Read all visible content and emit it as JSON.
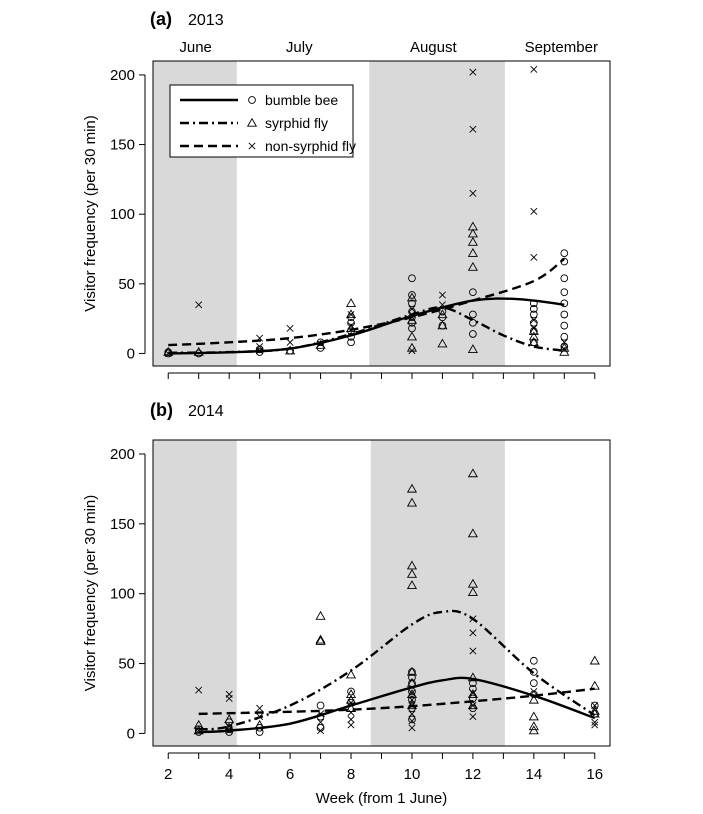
{
  "chart_data": [
    {
      "type": "scatter",
      "panel_label": "(a)",
      "title": "2013",
      "ylabel": "Visitor frequency (per 30 min)",
      "xlabel": "",
      "xlim": [
        1.5,
        16.5
      ],
      "ylim": [
        -9,
        210
      ],
      "yticks": [
        0,
        50,
        100,
        150,
        200
      ],
      "xticks_minor": [
        2,
        3,
        4,
        5,
        6,
        7,
        8,
        9,
        10,
        11,
        12,
        13,
        14,
        15,
        16
      ],
      "months": [
        {
          "label": "June",
          "x": 2.9
        },
        {
          "label": "July",
          "x": 6.3
        },
        {
          "label": "August",
          "x": 10.7
        },
        {
          "label": "September",
          "x": 14.9
        }
      ],
      "shaded_bands": [
        [
          1.5,
          4.25
        ],
        [
          8.6,
          13.05
        ]
      ],
      "legend": [
        {
          "label": "bumble bee",
          "line": "solid",
          "marker": "circle"
        },
        {
          "label": "syrphid fly",
          "line": "dash-dot",
          "marker": "triangle"
        },
        {
          "label": "non-syrphid fly",
          "line": "dashed",
          "marker": "cross"
        }
      ],
      "series": [
        {
          "name": "bumble bee",
          "marker": "circle",
          "line": "solid",
          "points": [
            [
              2,
              0
            ],
            [
              2,
              1
            ],
            [
              3,
              0
            ],
            [
              5,
              1
            ],
            [
              5,
              3
            ],
            [
              6,
              2
            ],
            [
              7,
              4
            ],
            [
              7,
              8
            ],
            [
              8,
              8
            ],
            [
              8,
              12
            ],
            [
              8,
              16
            ],
            [
              8,
              22
            ],
            [
              8,
              26
            ],
            [
              10,
              18
            ],
            [
              10,
              22
            ],
            [
              10,
              26
            ],
            [
              10,
              30
            ],
            [
              10,
              36
            ],
            [
              10,
              42
            ],
            [
              10,
              54
            ],
            [
              11,
              20
            ],
            [
              11,
              26
            ],
            [
              11,
              30
            ],
            [
              12,
              14
            ],
            [
              12,
              22
            ],
            [
              12,
              28
            ],
            [
              12,
              44
            ],
            [
              14,
              8
            ],
            [
              14,
              16
            ],
            [
              14,
              22
            ],
            [
              14,
              28
            ],
            [
              14,
              32
            ],
            [
              14,
              36
            ],
            [
              15,
              5
            ],
            [
              15,
              12
            ],
            [
              15,
              20
            ],
            [
              15,
              28
            ],
            [
              15,
              36
            ],
            [
              15,
              44
            ],
            [
              15,
              54
            ],
            [
              15,
              66
            ],
            [
              15,
              72
            ]
          ],
          "trend": [
            [
              2,
              0
            ],
            [
              4,
              0.8
            ],
            [
              6,
              3.5
            ],
            [
              8,
              13
            ],
            [
              10,
              27
            ],
            [
              12,
              38
            ],
            [
              13.5,
              39
            ],
            [
              15,
              35
            ]
          ]
        },
        {
          "name": "syrphid fly",
          "marker": "triangle",
          "line": "dash-dot",
          "points": [
            [
              2,
              1
            ],
            [
              3,
              1
            ],
            [
              6,
              2
            ],
            [
              7,
              6
            ],
            [
              8,
              18
            ],
            [
              8,
              28
            ],
            [
              8,
              36
            ],
            [
              10,
              4
            ],
            [
              10,
              12
            ],
            [
              10,
              24
            ],
            [
              10,
              40
            ],
            [
              11,
              7
            ],
            [
              11,
              20
            ],
            [
              11,
              28
            ],
            [
              12,
              3
            ],
            [
              12,
              62
            ],
            [
              12,
              72
            ],
            [
              12,
              80
            ],
            [
              12,
              86
            ],
            [
              12,
              91
            ],
            [
              14,
              8
            ],
            [
              14,
              12
            ],
            [
              14,
              16
            ],
            [
              15,
              1
            ],
            [
              15,
              4
            ]
          ],
          "trend": [
            [
              2,
              0.5
            ],
            [
              4,
              1
            ],
            [
              6,
              3.5
            ],
            [
              8,
              14
            ],
            [
              10,
              28
            ],
            [
              11,
              33
            ],
            [
              12,
              24
            ],
            [
              13,
              13
            ],
            [
              14,
              5
            ],
            [
              15,
              2
            ]
          ]
        },
        {
          "name": "non-syrphid fly",
          "marker": "cross",
          "line": "dashed",
          "points": [
            [
              2,
              0
            ],
            [
              3,
              35
            ],
            [
              5,
              2
            ],
            [
              5,
              5
            ],
            [
              5,
              11
            ],
            [
              6,
              8
            ],
            [
              6,
              18
            ],
            [
              7,
              7
            ],
            [
              8,
              20
            ],
            [
              8,
              28
            ],
            [
              10,
              2
            ],
            [
              10,
              28
            ],
            [
              10,
              32
            ],
            [
              11,
              35
            ],
            [
              11,
              42
            ],
            [
              12,
              115
            ],
            [
              12,
              161
            ],
            [
              12,
              202
            ],
            [
              14,
              18
            ],
            [
              14,
              24
            ],
            [
              14,
              69
            ],
            [
              14,
              102
            ],
            [
              14,
              204
            ],
            [
              15,
              3
            ],
            [
              15,
              8
            ]
          ],
          "trend": [
            [
              2,
              6
            ],
            [
              4,
              8
            ],
            [
              6,
              11
            ],
            [
              8,
              17
            ],
            [
              10,
              26
            ],
            [
              12,
              38
            ],
            [
              14,
              52
            ],
            [
              15,
              68
            ]
          ]
        }
      ]
    },
    {
      "type": "scatter",
      "panel_label": "(b)",
      "title": "2014",
      "ylabel": "Visitor frequency (per 30 min)",
      "xlabel": "Week (from 1 June)",
      "xlim": [
        1.5,
        16.5
      ],
      "ylim": [
        -9,
        210
      ],
      "yticks": [
        0,
        50,
        100,
        150,
        200
      ],
      "xticks": [
        2,
        4,
        6,
        8,
        10,
        12,
        14,
        16
      ],
      "xticks_minor": [
        3,
        5,
        7,
        9,
        11,
        13,
        15
      ],
      "shaded_bands": [
        [
          1.5,
          4.25
        ],
        [
          8.65,
          13.05
        ]
      ],
      "series": [
        {
          "name": "bumble bee",
          "marker": "circle",
          "line": "solid",
          "points": [
            [
              3,
              1
            ],
            [
              3,
              3
            ],
            [
              4,
              1
            ],
            [
              4,
              3
            ],
            [
              4,
              8
            ],
            [
              5,
              1
            ],
            [
              5,
              4
            ],
            [
              7,
              4
            ],
            [
              7,
              12
            ],
            [
              7,
              20
            ],
            [
              8,
              22
            ],
            [
              8,
              30
            ],
            [
              10,
              10
            ],
            [
              10,
              18
            ],
            [
              10,
              24
            ],
            [
              10,
              30
            ],
            [
              10,
              36
            ],
            [
              10,
              40
            ],
            [
              10,
              44
            ],
            [
              12,
              18
            ],
            [
              12,
              25
            ],
            [
              12,
              32
            ],
            [
              12,
              36
            ],
            [
              14,
              28
            ],
            [
              14,
              36
            ],
            [
              14,
              44
            ],
            [
              14,
              52
            ],
            [
              16,
              14
            ],
            [
              16,
              20
            ]
          ],
          "trend": [
            [
              3,
              1
            ],
            [
              4,
              2
            ],
            [
              6,
              7
            ],
            [
              8,
              20
            ],
            [
              10,
              33
            ],
            [
              11,
              38
            ],
            [
              12,
              39
            ],
            [
              14,
              27
            ],
            [
              16,
              11
            ]
          ]
        },
        {
          "name": "syrphid fly",
          "marker": "triangle",
          "line": "dash-dot",
          "points": [
            [
              3,
              2
            ],
            [
              3,
              6
            ],
            [
              4,
              4
            ],
            [
              4,
              10
            ],
            [
              5,
              6
            ],
            [
              7,
              66
            ],
            [
              7,
              67
            ],
            [
              7,
              84
            ],
            [
              8,
              18
            ],
            [
              8,
              24
            ],
            [
              8,
              28
            ],
            [
              8,
              42
            ],
            [
              10,
              20
            ],
            [
              10,
              28
            ],
            [
              10,
              36
            ],
            [
              10,
              44
            ],
            [
              10,
              106
            ],
            [
              10,
              114
            ],
            [
              10,
              120
            ],
            [
              10,
              165
            ],
            [
              10,
              175
            ],
            [
              12,
              20
            ],
            [
              12,
              28
            ],
            [
              12,
              40
            ],
            [
              12,
              101
            ],
            [
              12,
              107
            ],
            [
              12,
              143
            ],
            [
              12,
              186
            ],
            [
              14,
              2
            ],
            [
              14,
              5
            ],
            [
              14,
              12
            ],
            [
              14,
              24
            ],
            [
              16,
              14
            ],
            [
              16,
              16
            ],
            [
              16,
              34
            ],
            [
              16,
              52
            ]
          ],
          "trend": [
            [
              3,
              3
            ],
            [
              4,
              5
            ],
            [
              6,
              20
            ],
            [
              8,
              45
            ],
            [
              10,
              78
            ],
            [
              11,
              87
            ],
            [
              12,
              82
            ],
            [
              14,
              43
            ],
            [
              16,
              13
            ]
          ]
        },
        {
          "name": "non-syrphid fly",
          "marker": "cross",
          "line": "dashed",
          "points": [
            [
              3,
              2
            ],
            [
              3,
              31
            ],
            [
              4,
              2
            ],
            [
              4,
              5
            ],
            [
              4,
              25
            ],
            [
              4,
              28
            ],
            [
              5,
              12
            ],
            [
              5,
              18
            ],
            [
              7,
              2
            ],
            [
              7,
              8
            ],
            [
              7,
              14
            ],
            [
              8,
              6
            ],
            [
              8,
              10
            ],
            [
              8,
              15
            ],
            [
              8,
              22
            ],
            [
              10,
              4
            ],
            [
              10,
              9
            ],
            [
              10,
              14
            ],
            [
              10,
              20
            ],
            [
              10,
              24
            ],
            [
              10,
              29
            ],
            [
              12,
              12
            ],
            [
              12,
              20
            ],
            [
              12,
              29
            ],
            [
              12,
              59
            ],
            [
              12,
              72
            ],
            [
              12,
              82
            ],
            [
              14,
              30
            ],
            [
              16,
              6
            ],
            [
              16,
              8
            ],
            [
              16,
              20
            ]
          ],
          "trend": [
            [
              3,
              14
            ],
            [
              6,
              15.5
            ],
            [
              8,
              17
            ],
            [
              10,
              19.5
            ],
            [
              12,
              23
            ],
            [
              14,
              27
            ],
            [
              16,
              32
            ]
          ]
        }
      ]
    }
  ]
}
